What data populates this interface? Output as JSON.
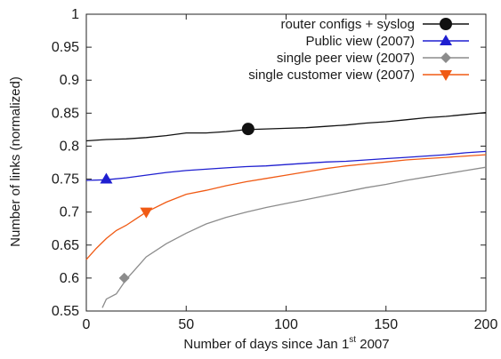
{
  "chart_data": {
    "type": "line",
    "xlabel_main": "Number of days since Jan 1",
    "xlabel_sup": "st",
    "xlabel_tail": " 2007",
    "ylabel": "Number of links (normalized)",
    "xlim": [
      0,
      200
    ],
    "ylim": [
      0.55,
      1.0
    ],
    "x_ticks": [
      0,
      50,
      100,
      150,
      200
    ],
    "x_tick_labels": [
      "0",
      "50",
      "100",
      "150",
      "200"
    ],
    "y_ticks": [
      0.55,
      0.6,
      0.65,
      0.7,
      0.75,
      0.8,
      0.85,
      0.9,
      0.95,
      1.0
    ],
    "y_tick_labels": [
      "0.55",
      "0.6",
      "0.65",
      "0.7",
      "0.75",
      "0.8",
      "0.85",
      "0.9",
      "0.95",
      "1"
    ],
    "grid": false,
    "legend_position": "top-right",
    "series": [
      {
        "name": "router configs + syslog",
        "color": "#111111",
        "marker": "circle",
        "marker_at": [
          81,
          0.826
        ],
        "x": [
          0,
          10,
          20,
          30,
          40,
          50,
          60,
          70,
          80,
          90,
          100,
          110,
          120,
          130,
          140,
          150,
          160,
          170,
          180,
          190,
          200
        ],
        "y": [
          0.808,
          0.81,
          0.811,
          0.813,
          0.816,
          0.82,
          0.82,
          0.822,
          0.825,
          0.826,
          0.827,
          0.828,
          0.83,
          0.832,
          0.835,
          0.837,
          0.84,
          0.843,
          0.845,
          0.848,
          0.851
        ]
      },
      {
        "name": "Public view (2007)",
        "color": "#1f1fd0",
        "marker": "triangle-up",
        "marker_at": [
          10,
          0.75
        ],
        "x": [
          0,
          10,
          20,
          30,
          40,
          50,
          60,
          70,
          80,
          90,
          100,
          110,
          120,
          130,
          140,
          150,
          160,
          170,
          180,
          190,
          200
        ],
        "y": [
          0.748,
          0.749,
          0.752,
          0.756,
          0.76,
          0.763,
          0.765,
          0.767,
          0.769,
          0.77,
          0.772,
          0.774,
          0.776,
          0.777,
          0.779,
          0.781,
          0.783,
          0.785,
          0.787,
          0.79,
          0.792
        ]
      },
      {
        "name": "single peer view (2007)",
        "color": "#8c8c8c",
        "marker": "diamond",
        "marker_at": [
          19,
          0.6
        ],
        "x": [
          8,
          10,
          15,
          20,
          25,
          30,
          40,
          50,
          60,
          70,
          80,
          90,
          100,
          110,
          120,
          130,
          140,
          150,
          160,
          170,
          180,
          190,
          200
        ],
        "y": [
          0.555,
          0.568,
          0.576,
          0.598,
          0.615,
          0.632,
          0.652,
          0.668,
          0.682,
          0.692,
          0.7,
          0.707,
          0.713,
          0.719,
          0.725,
          0.731,
          0.737,
          0.742,
          0.748,
          0.753,
          0.758,
          0.763,
          0.768
        ]
      },
      {
        "name": "single customer view (2007)",
        "color": "#f05a14",
        "marker": "triangle-down",
        "marker_at": [
          30,
          0.7
        ],
        "x": [
          0,
          5,
          10,
          15,
          20,
          25,
          30,
          40,
          50,
          60,
          70,
          80,
          90,
          100,
          110,
          120,
          130,
          140,
          150,
          160,
          170,
          180,
          190,
          200
        ],
        "y": [
          0.628,
          0.645,
          0.66,
          0.672,
          0.68,
          0.69,
          0.7,
          0.715,
          0.727,
          0.733,
          0.74,
          0.746,
          0.751,
          0.756,
          0.761,
          0.766,
          0.77,
          0.773,
          0.776,
          0.779,
          0.781,
          0.783,
          0.785,
          0.787
        ]
      }
    ]
  }
}
